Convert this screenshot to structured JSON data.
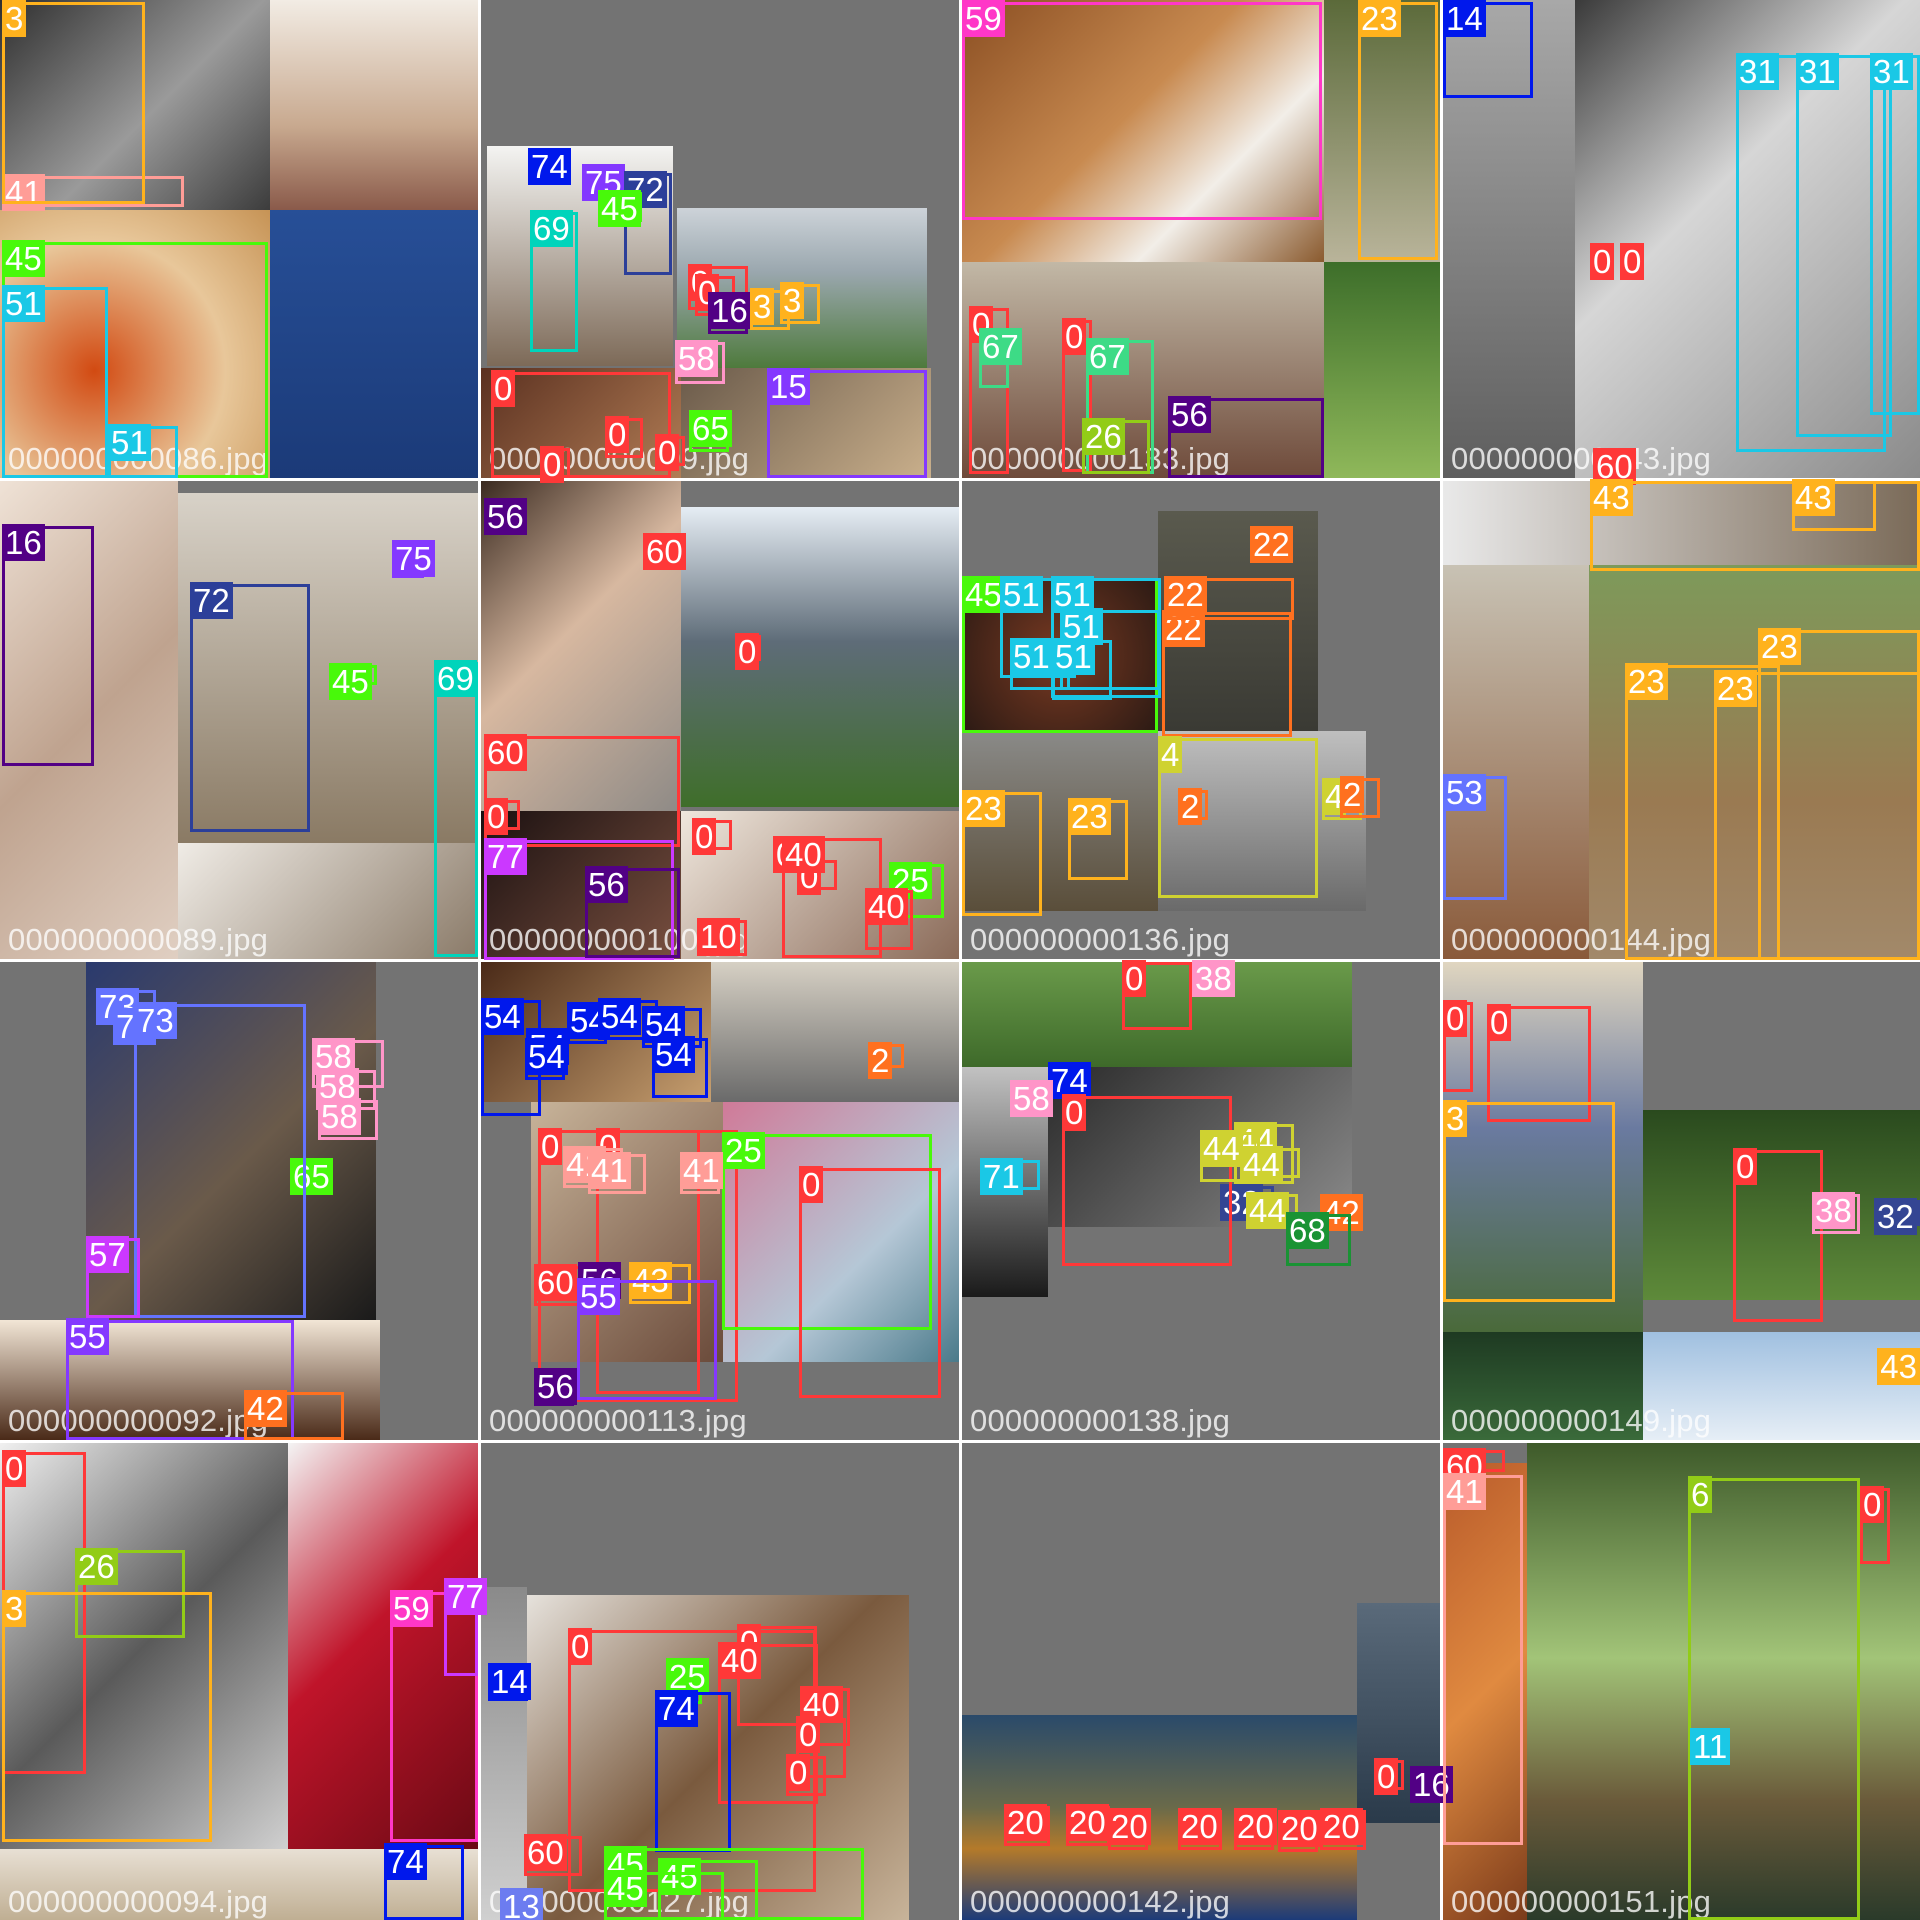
{
  "tiles": [
    {
      "caption": "000000000086.jpg"
    },
    {
      "caption": "000000000009.jpg"
    },
    {
      "caption": "000000000133.jpg"
    },
    {
      "caption": "000000000143.jpg"
    },
    {
      "caption": "000000000089.jpg"
    },
    {
      "caption": "000000000100.jpg"
    },
    {
      "caption": "000000000136.jpg"
    },
    {
      "caption": "000000000144.jpg"
    },
    {
      "caption": "000000000092.jpg"
    },
    {
      "caption": "000000000113.jpg"
    },
    {
      "caption": "000000000138.jpg"
    },
    {
      "caption": "000000000149.jpg"
    },
    {
      "caption": "000000000094.jpg"
    },
    {
      "caption": "000000000127.jpg"
    },
    {
      "caption": "000000000142.jpg"
    },
    {
      "caption": "000000000151.jpg"
    }
  ],
  "class_colors": {
    "0": "#ff3838",
    "2": "#ff701f",
    "3": "#ffb21d",
    "4": "#cfd231",
    "6": "#92cc17",
    "11": "#1ac8e6",
    "13": "#6c7cf0",
    "14": "#0018ec",
    "15": "#8438ff",
    "16": "#520085",
    "20": "#ff3838",
    "22": "#ff701f",
    "23": "#ffb21d",
    "25": "#48f90a",
    "26": "#92cc17",
    "31": "#1ac8e6",
    "32": "#344593",
    "38": "#ff95c8",
    "40": "#ff3838",
    "41": "#ff9d97",
    "42": "#ff701f",
    "43": "#ffb21d",
    "44": "#cfd231",
    "45": "#48f90a",
    "51": "#1ac8e6",
    "53": "#6473ff",
    "54": "#0018ec",
    "55": "#8438ff",
    "56": "#520085",
    "57": "#cb38ff",
    "58": "#ff95c8",
    "59": "#ff37c7",
    "60": "#ff3838",
    "65": "#48f90a",
    "67": "#3ddb86",
    "68": "#1a9334",
    "69": "#00d4bb",
    "71": "#1ac8e6",
    "72": "#2c3f99",
    "73": "#6473ff",
    "74": "#0018ec",
    "75": "#8438ff",
    "77": "#cb38ff"
  },
  "detections": [
    {
      "tile": 0,
      "cls": "41"
    },
    {
      "tile": 0,
      "cls": "3"
    },
    {
      "tile": 0,
      "cls": "45"
    },
    {
      "tile": 0,
      "cls": "51"
    },
    {
      "tile": 0,
      "cls": "51"
    },
    {
      "tile": 1,
      "cls": "74"
    },
    {
      "tile": 1,
      "cls": "75"
    },
    {
      "tile": 1,
      "cls": "72"
    },
    {
      "tile": 1,
      "cls": "69"
    },
    {
      "tile": 1,
      "cls": "45"
    },
    {
      "tile": 1,
      "cls": "0"
    },
    {
      "tile": 1,
      "cls": "0"
    },
    {
      "tile": 1,
      "cls": "16"
    },
    {
      "tile": 1,
      "cls": "3"
    },
    {
      "tile": 1,
      "cls": "3"
    },
    {
      "tile": 1,
      "cls": "58"
    },
    {
      "tile": 1,
      "cls": "15"
    },
    {
      "tile": 1,
      "cls": "0"
    },
    {
      "tile": 1,
      "cls": "0"
    },
    {
      "tile": 1,
      "cls": "65"
    },
    {
      "tile": 1,
      "cls": "0"
    },
    {
      "tile": 1,
      "cls": "0"
    },
    {
      "tile": 2,
      "cls": "59"
    },
    {
      "tile": 2,
      "cls": "23"
    },
    {
      "tile": 2,
      "cls": "0"
    },
    {
      "tile": 2,
      "cls": "67"
    },
    {
      "tile": 2,
      "cls": "0"
    },
    {
      "tile": 2,
      "cls": "67"
    },
    {
      "tile": 2,
      "cls": "26"
    },
    {
      "tile": 2,
      "cls": "56"
    },
    {
      "tile": 3,
      "cls": "14"
    },
    {
      "tile": 3,
      "cls": "31"
    },
    {
      "tile": 3,
      "cls": "31"
    },
    {
      "tile": 3,
      "cls": "31"
    },
    {
      "tile": 3,
      "cls": "0"
    },
    {
      "tile": 3,
      "cls": "0"
    },
    {
      "tile": 3,
      "cls": "60"
    },
    {
      "tile": 3,
      "cls": "43"
    },
    {
      "tile": 4,
      "cls": "16"
    },
    {
      "tile": 4,
      "cls": "75"
    },
    {
      "tile": 4,
      "cls": "72"
    },
    {
      "tile": 4,
      "cls": "45"
    },
    {
      "tile": 4,
      "cls": "69"
    },
    {
      "tile": 5,
      "cls": "56"
    },
    {
      "tile": 5,
      "cls": "60"
    },
    {
      "tile": 5,
      "cls": "0"
    },
    {
      "tile": 5,
      "cls": "60"
    },
    {
      "tile": 5,
      "cls": "0"
    },
    {
      "tile": 5,
      "cls": "77"
    },
    {
      "tile": 5,
      "cls": "56"
    },
    {
      "tile": 5,
      "cls": "0"
    },
    {
      "tile": 5,
      "cls": "0"
    },
    {
      "tile": 5,
      "cls": "0"
    },
    {
      "tile": 5,
      "cls": "25"
    },
    {
      "tile": 5,
      "cls": "40"
    },
    {
      "tile": 5,
      "cls": "40"
    },
    {
      "tile": 5,
      "cls": "10"
    },
    {
      "tile": 6,
      "cls": "45"
    },
    {
      "tile": 6,
      "cls": "51"
    },
    {
      "tile": 6,
      "cls": "51"
    },
    {
      "tile": 6,
      "cls": "51"
    },
    {
      "tile": 6,
      "cls": "51"
    },
    {
      "tile": 6,
      "cls": "51"
    },
    {
      "tile": 6,
      "cls": "22"
    },
    {
      "tile": 6,
      "cls": "22"
    },
    {
      "tile": 6,
      "cls": "22"
    },
    {
      "tile": 6,
      "cls": "4"
    },
    {
      "tile": 6,
      "cls": "23"
    },
    {
      "tile": 6,
      "cls": "23"
    },
    {
      "tile": 6,
      "cls": "2"
    },
    {
      "tile": 6,
      "cls": "4"
    },
    {
      "tile": 6,
      "cls": "2"
    },
    {
      "tile": 7,
      "cls": "43"
    },
    {
      "tile": 7,
      "cls": "23"
    },
    {
      "tile": 7,
      "cls": "23"
    },
    {
      "tile": 7,
      "cls": "23"
    },
    {
      "tile": 7,
      "cls": "53"
    },
    {
      "tile": 8,
      "cls": "73"
    },
    {
      "tile": 8,
      "cls": "73"
    },
    {
      "tile": 8,
      "cls": "58"
    },
    {
      "tile": 8,
      "cls": "58"
    },
    {
      "tile": 8,
      "cls": "58"
    },
    {
      "tile": 8,
      "cls": "65"
    },
    {
      "tile": 8,
      "cls": "73"
    },
    {
      "tile": 8,
      "cls": "57"
    },
    {
      "tile": 8,
      "cls": "55"
    },
    {
      "tile": 8,
      "cls": "42"
    },
    {
      "tile": 9,
      "cls": "54"
    },
    {
      "tile": 9,
      "cls": "54"
    },
    {
      "tile": 9,
      "cls": "54"
    },
    {
      "tile": 9,
      "cls": "54"
    },
    {
      "tile": 9,
      "cls": "54"
    },
    {
      "tile": 9,
      "cls": "54"
    },
    {
      "tile": 9,
      "cls": "54"
    },
    {
      "tile": 9,
      "cls": "2"
    },
    {
      "tile": 9,
      "cls": "0"
    },
    {
      "tile": 9,
      "cls": "0"
    },
    {
      "tile": 9,
      "cls": "25"
    },
    {
      "tile": 9,
      "cls": "0"
    },
    {
      "tile": 9,
      "cls": "41"
    },
    {
      "tile": 9,
      "cls": "41"
    },
    {
      "tile": 9,
      "cls": "41"
    },
    {
      "tile": 9,
      "cls": "60"
    },
    {
      "tile": 9,
      "cls": "56"
    },
    {
      "tile": 9,
      "cls": "43"
    },
    {
      "tile": 9,
      "cls": "55"
    },
    {
      "tile": 9,
      "cls": "56"
    },
    {
      "tile": 10,
      "cls": "0"
    },
    {
      "tile": 10,
      "cls": "38"
    },
    {
      "tile": 10,
      "cls": "32"
    },
    {
      "tile": 10,
      "cls": "74"
    },
    {
      "tile": 10,
      "cls": "58"
    },
    {
      "tile": 10,
      "cls": "0"
    },
    {
      "tile": 10,
      "cls": "71"
    },
    {
      "tile": 10,
      "cls": "44"
    },
    {
      "tile": 10,
      "cls": "44"
    },
    {
      "tile": 10,
      "cls": "44"
    },
    {
      "tile": 10,
      "cls": "44"
    },
    {
      "tile": 10,
      "cls": "42"
    },
    {
      "tile": 10,
      "cls": "68"
    },
    {
      "tile": 11,
      "cls": "0"
    },
    {
      "tile": 11,
      "cls": "0"
    },
    {
      "tile": 11,
      "cls": "3"
    },
    {
      "tile": 11,
      "cls": "0"
    },
    {
      "tile": 11,
      "cls": "38"
    },
    {
      "tile": 11,
      "cls": "32"
    },
    {
      "tile": 11,
      "cls": "43"
    },
    {
      "tile": 12,
      "cls": "0"
    },
    {
      "tile": 12,
      "cls": "26"
    },
    {
      "tile": 12,
      "cls": "3"
    },
    {
      "tile": 12,
      "cls": "59"
    },
    {
      "tile": 12,
      "cls": "77"
    },
    {
      "tile": 12,
      "cls": "74"
    },
    {
      "tile": 13,
      "cls": "14"
    },
    {
      "tile": 13,
      "cls": "0"
    },
    {
      "tile": 13,
      "cls": "25"
    },
    {
      "tile": 13,
      "cls": "0"
    },
    {
      "tile": 13,
      "cls": "40"
    },
    {
      "tile": 13,
      "cls": "40"
    },
    {
      "tile": 13,
      "cls": "74"
    },
    {
      "tile": 13,
      "cls": "0"
    },
    {
      "tile": 13,
      "cls": "0"
    },
    {
      "tile": 13,
      "cls": "60"
    },
    {
      "tile": 13,
      "cls": "45"
    },
    {
      "tile": 13,
      "cls": "45"
    },
    {
      "tile": 13,
      "cls": "45"
    },
    {
      "tile": 13,
      "cls": "13"
    },
    {
      "tile": 14,
      "cls": "20"
    },
    {
      "tile": 14,
      "cls": "20"
    },
    {
      "tile": 14,
      "cls": "20"
    },
    {
      "tile": 14,
      "cls": "20"
    },
    {
      "tile": 14,
      "cls": "20"
    },
    {
      "tile": 14,
      "cls": "20"
    },
    {
      "tile": 14,
      "cls": "20"
    },
    {
      "tile": 14,
      "cls": "0"
    },
    {
      "tile": 14,
      "cls": "16"
    },
    {
      "tile": 15,
      "cls": "60"
    },
    {
      "tile": 15,
      "cls": "41"
    },
    {
      "tile": 15,
      "cls": "6"
    },
    {
      "tile": 15,
      "cls": "0"
    },
    {
      "tile": 15,
      "cls": "11"
    }
  ]
}
